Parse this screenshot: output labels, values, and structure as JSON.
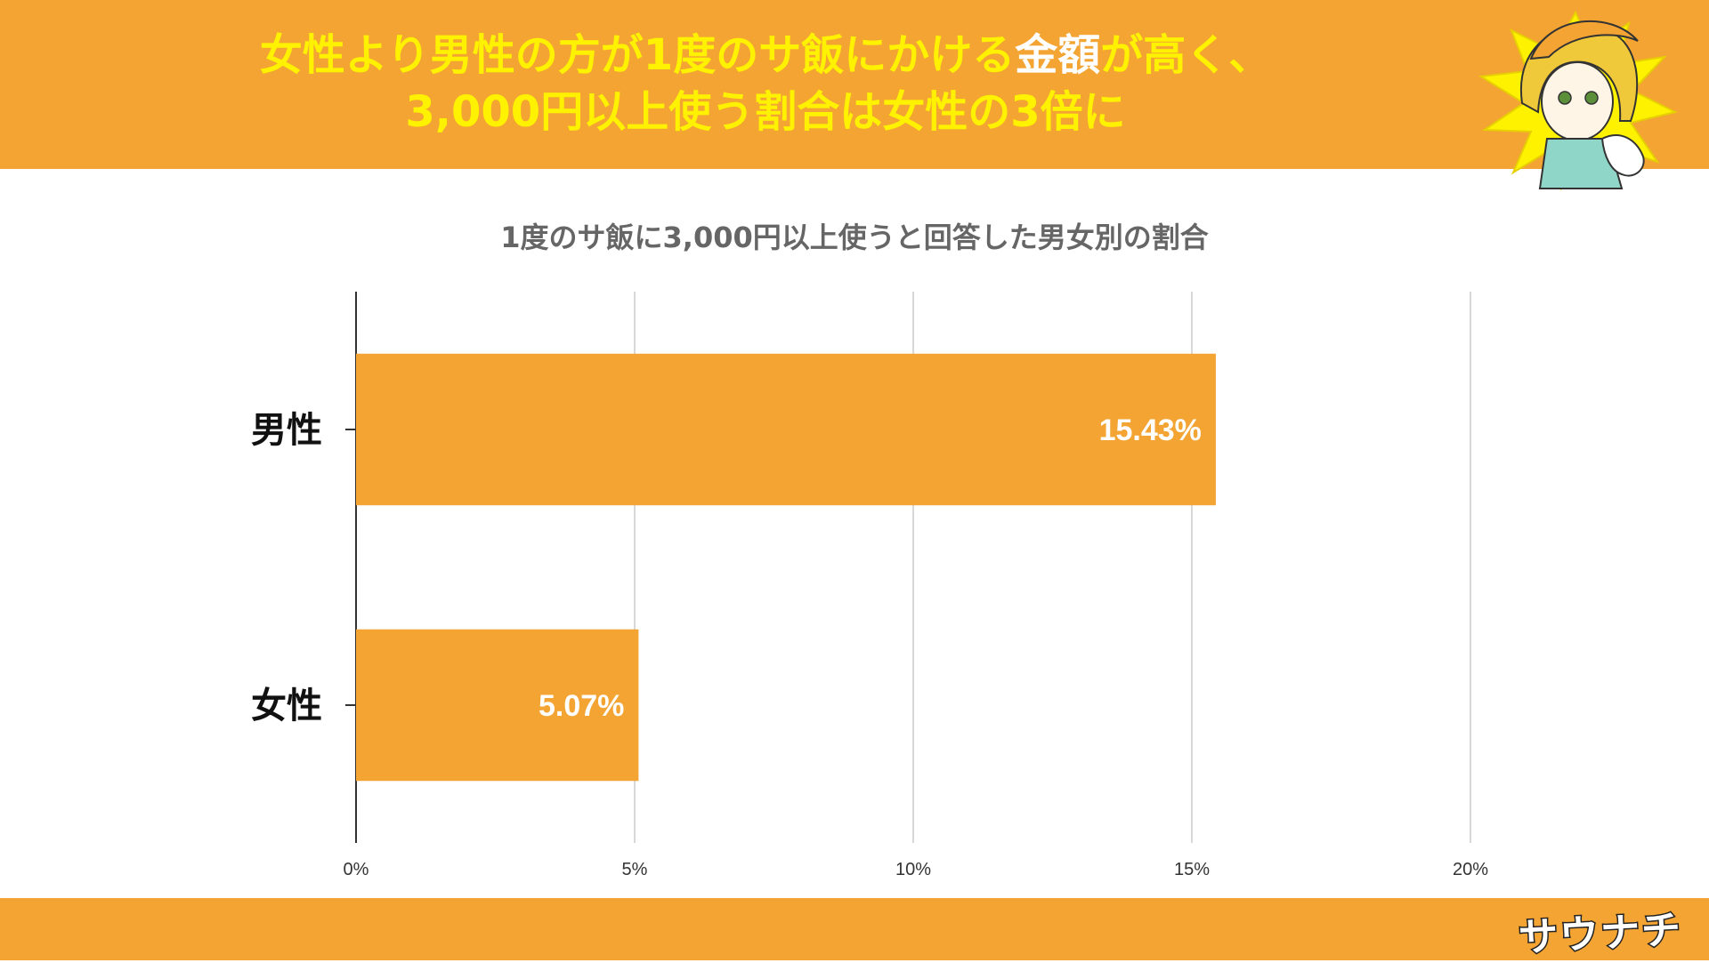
{
  "header": {
    "headline_line1_a": "女性より男性の方が1度のサ飯にかける",
    "headline_line1_hl": "金額",
    "headline_line1_b": "が高く、",
    "headline_line2": "3,000円以上使う割合は女性の3倍に"
  },
  "footer": {
    "logo": "サウナチ"
  },
  "colors": {
    "accent": "#f3a432",
    "headline": "#fff200",
    "bar": "#f3a432",
    "title": "#666666"
  },
  "chart_data": {
    "type": "bar",
    "orientation": "horizontal",
    "title": "1度のサ飯に3,000円以上使うと回答した男女別の割合",
    "categories": [
      "男性",
      "女性"
    ],
    "values": [
      15.43,
      5.07
    ],
    "data_labels": [
      "15.43%",
      "5.07%"
    ],
    "xlim": [
      0,
      20
    ],
    "xticks": [
      0,
      5,
      10,
      15,
      20
    ],
    "xtick_labels": [
      "0%",
      "5%",
      "10%",
      "15%",
      "20%"
    ],
    "grid": true
  }
}
